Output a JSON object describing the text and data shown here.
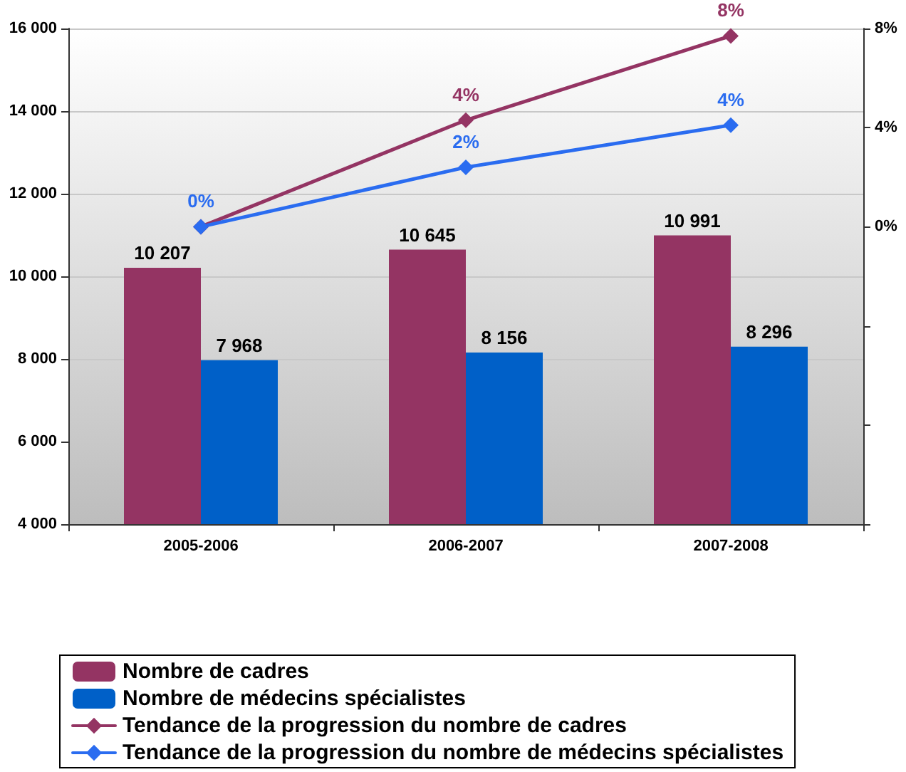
{
  "chart_data": {
    "type": "bar",
    "categories": [
      "2005-2006",
      "2006-2007",
      "2007-2008"
    ],
    "series": [
      {
        "name": "Nombre de cadres",
        "color": "#943463",
        "values": [
          10207,
          10645,
          10991
        ],
        "value_labels": [
          "10 207",
          "10 645",
          "10 991"
        ]
      },
      {
        "name": "Nombre de médecins spécialistes",
        "color": "#0060c8",
        "values": [
          7968,
          8156,
          8296
        ],
        "value_labels": [
          "7 968",
          "8 156",
          "8 296"
        ]
      },
      {
        "name": "Tendance de la progression du nombre de cadres",
        "type": "line",
        "axis": "y2",
        "color": "#943463",
        "values": [
          0,
          4.3,
          7.7
        ],
        "value_labels": [
          null,
          "4%",
          "8%"
        ]
      },
      {
        "name": "Tendance de la progression du nombre de médecins spécialistes",
        "type": "line",
        "axis": "y2",
        "color": "#2a6cf0",
        "values": [
          0,
          2.4,
          4.1
        ],
        "value_labels": [
          "0%",
          "2%",
          "4%"
        ]
      }
    ],
    "ylim": [
      4000,
      16000
    ],
    "yticks": [
      {
        "value": 4000,
        "label": "4 000"
      },
      {
        "value": 6000,
        "label": "6 000"
      },
      {
        "value": 8000,
        "label": "8 000"
      },
      {
        "value": 10000,
        "label": "10 000"
      },
      {
        "value": 12000,
        "label": "12 000"
      },
      {
        "value": 14000,
        "label": "14 000"
      },
      {
        "value": 16000,
        "label": "16 000"
      }
    ],
    "y2lim": [
      -12,
      8
    ],
    "y2ticks": [
      {
        "value": -12,
        "label": null
      },
      {
        "value": -8,
        "label": null
      },
      {
        "value": -4,
        "label": null
      },
      {
        "value": 0,
        "label": "0%"
      },
      {
        "value": 4,
        "label": "4%"
      },
      {
        "value": 8,
        "label": "8%"
      }
    ],
    "grid": "y",
    "legend": "bottom",
    "marker": "diamond"
  }
}
